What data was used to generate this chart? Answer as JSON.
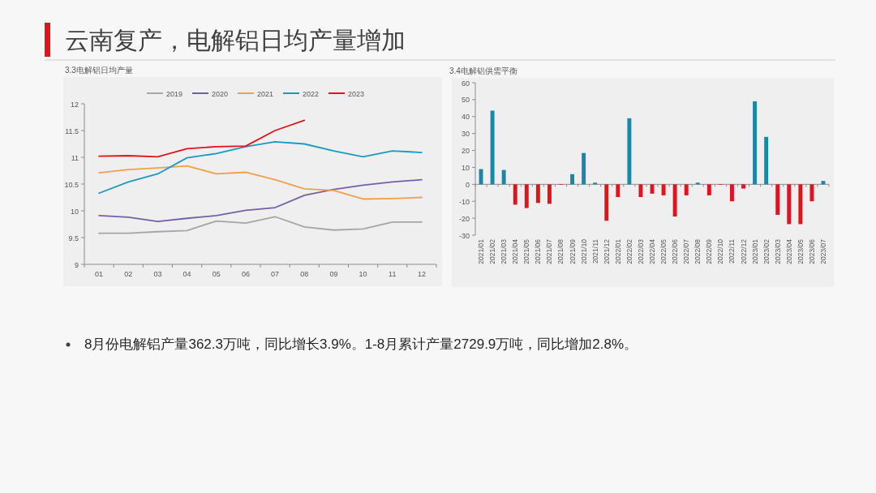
{
  "chart_data": [
    {
      "type": "line",
      "title": "3.3电解铝日均产量",
      "categories": [
        "01",
        "02",
        "03",
        "04",
        "05",
        "06",
        "07",
        "08",
        "09",
        "10",
        "11",
        "12"
      ],
      "series": [
        {
          "name": "2019",
          "color": "#a6a6a6",
          "values": [
            9.58,
            9.58,
            9.61,
            9.63,
            9.81,
            9.77,
            9.89,
            9.7,
            9.64,
            9.66,
            9.79,
            9.79
          ]
        },
        {
          "name": "2020",
          "color": "#7560a8",
          "values": [
            9.91,
            9.88,
            9.8,
            9.86,
            9.91,
            10.01,
            10.06,
            10.29,
            10.4,
            10.48,
            10.54,
            10.58
          ]
        },
        {
          "name": "2021",
          "color": "#f0a04b",
          "values": [
            10.71,
            10.77,
            10.8,
            10.84,
            10.69,
            10.72,
            10.58,
            10.41,
            10.38,
            10.22,
            10.23,
            10.25
          ]
        },
        {
          "name": "2022",
          "color": "#1a9ac0",
          "values": [
            10.33,
            10.54,
            10.69,
            10.99,
            11.07,
            11.2,
            11.29,
            11.25,
            11.12,
            11.01,
            11.12,
            11.09
          ]
        },
        {
          "name": "2023",
          "color": "#e0141e",
          "values": [
            11.02,
            11.03,
            11.01,
            11.16,
            11.2,
            11.21,
            11.5,
            11.69,
            null,
            null,
            null,
            null
          ]
        }
      ],
      "ylim": [
        9,
        12
      ],
      "yticks": [
        9,
        9.5,
        10,
        10.5,
        11,
        11.5,
        12
      ],
      "grid": false,
      "legend": "top",
      "marker": "none",
      "line_style": "solid"
    },
    {
      "type": "bar",
      "title": "3.4电解铝供需平衡",
      "categories": [
        "2021/01",
        "2021/02",
        "2021/03",
        "2021/04",
        "2021/05",
        "2021/06",
        "2021/07",
        "2021/08",
        "2021/09",
        "2021/10",
        "2021/11",
        "2021/12",
        "2022/01",
        "2022/02",
        "2022/03",
        "2022/04",
        "2022/05",
        "2022/06",
        "2022/07",
        "2022/08",
        "2022/09",
        "2022/10",
        "2022/11",
        "2022/12",
        "2023/01",
        "2023/02",
        "2023/03",
        "2023/04",
        "2023/05",
        "2023/06",
        "2023/07"
      ],
      "values": [
        9,
        43.5,
        8.5,
        -12,
        -14,
        -11,
        -11.5,
        -0.3,
        6,
        18.5,
        1,
        -21.5,
        -7.5,
        39,
        -7.5,
        -5.5,
        -6.5,
        -19,
        -6.5,
        1,
        -6.5,
        -0.3,
        -10,
        -2.5,
        49,
        28,
        -18,
        -23.5,
        -23.5,
        -10,
        2
      ],
      "colors": [
        "#1a87a8",
        "#1a87a8",
        "#1a87a8",
        "#e0141e",
        "#e0141e",
        "#e0141e",
        "#e0141e",
        "#e0141e",
        "#1a87a8",
        "#1a87a8",
        "#1a87a8",
        "#e0141e",
        "#e0141e",
        "#1a87a8",
        "#e0141e",
        "#e0141e",
        "#e0141e",
        "#e0141e",
        "#e0141e",
        "#1a87a8",
        "#e0141e",
        "#e0141e",
        "#e0141e",
        "#e0141e",
        "#1a87a8",
        "#1a87a8",
        "#e0141e",
        "#e0141e",
        "#e0141e",
        "#e0141e",
        "#1a87a8"
      ],
      "ylim": [
        -30,
        60
      ],
      "yticks": [
        -30,
        -20,
        -10,
        0,
        10,
        20,
        30,
        40,
        50,
        60
      ]
    },
    {
      "type": "other",
      "title": "云南复产，电解铝日均产量增加",
      "annotations": [
        "8月份电解铝产量362.3万吨，同比增长3.9%。1-8月累计产量2729.9万吨，同比增加2.8%。"
      ]
    }
  ]
}
